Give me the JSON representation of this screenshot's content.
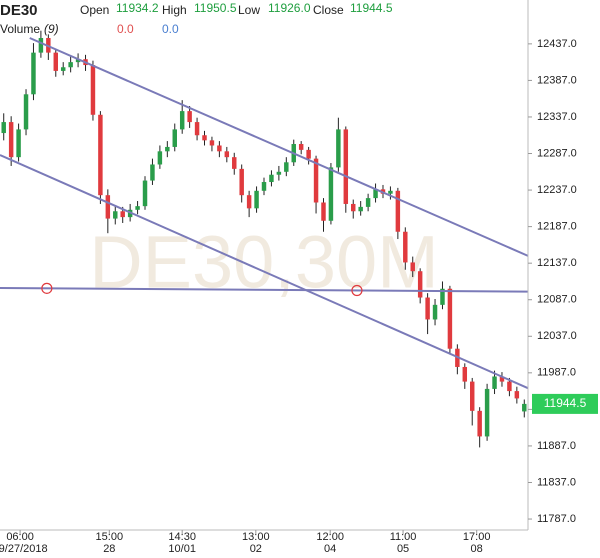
{
  "chart_data": {
    "type": "candlestick",
    "symbol": "DE30",
    "watermark": "DE30,30M",
    "header": {
      "open_label": "Open",
      "open": "11934.2",
      "high_label": "High",
      "high": "11950.5",
      "low_label": "Low",
      "low": "11926.0",
      "close_label": "Close",
      "close": "11944.5",
      "volume_label": "Volume",
      "volume_period": "(9)",
      "volume_value_1": "0.0",
      "volume_value_2": "0.0"
    },
    "up_color": "#2a9d4a",
    "down_color": "#e03a3e",
    "wick_color": "#222",
    "open": [
      12315,
      12330,
      12282,
      12320,
      12368,
      12425,
      12445,
      12425,
      12400,
      12405,
      12412,
      12416,
      12408,
      12340,
      12230,
      12198,
      12208,
      12200,
      12210,
      12215,
      12250,
      12272,
      12290,
      12296,
      12320,
      12345,
      12330,
      12312,
      12305,
      12298,
      12290,
      12282,
      12266,
      12230,
      12212,
      12236,
      12248,
      12258,
      12262,
      12275,
      12300,
      12292,
      12280,
      12220,
      12195,
      12268,
      12320,
      12218,
      12208,
      12214,
      12226,
      12238,
      12232,
      12236,
      12180,
      12138,
      12126,
      12090,
      12060,
      12080,
      12102,
      12020,
      11995,
      11975,
      11935,
      11900,
      11965,
      11982,
      11975,
      11962,
      11934.2
    ],
    "high": [
      12342,
      12338,
      12328,
      12375,
      12438,
      12455,
      12450,
      12430,
      12412,
      12420,
      12424,
      12422,
      12414,
      12345,
      12238,
      12216,
      12214,
      12218,
      12222,
      12256,
      12280,
      12298,
      12304,
      12328,
      12360,
      12352,
      12336,
      12318,
      12310,
      12304,
      12296,
      12288,
      12272,
      12236,
      12242,
      12254,
      12264,
      12270,
      12282,
      12306,
      12304,
      12296,
      12284,
      12226,
      12274,
      12336,
      12324,
      12224,
      12222,
      12232,
      12246,
      12244,
      12242,
      12240,
      12186,
      12146,
      12130,
      12096,
      12088,
      12112,
      12106,
      12026,
      12000,
      11980,
      11940,
      11972,
      11990,
      11988,
      11980,
      11968,
      11950.5
    ],
    "low": [
      12305,
      12270,
      12276,
      12312,
      12360,
      12418,
      12415,
      12392,
      12394,
      12398,
      12405,
      12400,
      12332,
      12218,
      12178,
      12190,
      12192,
      12194,
      12204,
      12210,
      12244,
      12266,
      12282,
      12290,
      12314,
      12322,
      12305,
      12298,
      12290,
      12282,
      12275,
      12258,
      12220,
      12200,
      12206,
      12230,
      12242,
      12250,
      12256,
      12270,
      12286,
      12272,
      12205,
      12180,
      12190,
      12262,
      12206,
      12198,
      12202,
      12208,
      12220,
      12226,
      12224,
      12170,
      12128,
      12118,
      12082,
      12040,
      12052,
      12074,
      12012,
      11985,
      11965,
      11915,
      11885,
      11894,
      11958,
      11968,
      11955,
      11945,
      11926.0
    ],
    "close": [
      12330,
      12282,
      12320,
      12368,
      12425,
      12445,
      12425,
      12400,
      12405,
      12412,
      12416,
      12408,
      12340,
      12230,
      12198,
      12208,
      12200,
      12210,
      12215,
      12250,
      12272,
      12290,
      12296,
      12320,
      12345,
      12330,
      12312,
      12305,
      12298,
      12290,
      12282,
      12266,
      12230,
      12212,
      12236,
      12248,
      12258,
      12262,
      12275,
      12300,
      12292,
      12280,
      12220,
      12195,
      12268,
      12320,
      12218,
      12208,
      12214,
      12226,
      12238,
      12232,
      12236,
      12180,
      12138,
      12126,
      12090,
      12060,
      12080,
      12102,
      12020,
      11995,
      11975,
      11935,
      11900,
      11965,
      11982,
      11975,
      11962,
      11952,
      11944.5
    ],
    "xlim": [
      -0.5,
      70.5
    ],
    "ylim": [
      11772,
      12497
    ],
    "yticks": [
      {
        "value": 12437,
        "label": "12437.0"
      },
      {
        "value": 12387,
        "label": "12387.0"
      },
      {
        "value": 12337,
        "label": "12337.0"
      },
      {
        "value": 12287,
        "label": "12287.0"
      },
      {
        "value": 12237,
        "label": "12237.0"
      },
      {
        "value": 12187,
        "label": "12187.0"
      },
      {
        "value": 12137,
        "label": "12137.0"
      },
      {
        "value": 12087,
        "label": "12087.0"
      },
      {
        "value": 12037,
        "label": "12037.0"
      },
      {
        "value": 11987,
        "label": "11987.0"
      },
      {
        "value": 11937,
        "label": "11937.0"
      },
      {
        "value": 11887,
        "label": "11887.0"
      },
      {
        "value": 11837,
        "label": "11837.0"
      },
      {
        "value": 11787,
        "label": "11787.0"
      }
    ],
    "xticks": [
      {
        "value": 2.2,
        "label": "06:00",
        "sublabel": "09/27/2018"
      },
      {
        "value": 14.2,
        "label": "15:00",
        "sublabel": "28"
      },
      {
        "value": 24,
        "label": "14:30",
        "sublabel": "10/01"
      },
      {
        "value": 33.9,
        "label": "13:00",
        "sublabel": "02"
      },
      {
        "value": 43.9,
        "label": "12:00",
        "sublabel": "04"
      },
      {
        "value": 53.7,
        "label": "11:00",
        "sublabel": "05"
      },
      {
        "value": 63.6,
        "label": "17:00",
        "sublabel": "08"
      }
    ],
    "line_color": "#7a7ab8",
    "marker_color": "#e03a3e",
    "price_tag_color": "#2ecc5a",
    "trendlines": [
      {
        "x": [
          3.5,
          70.5
        ],
        "y": [
          12445,
          12147
        ]
      },
      {
        "x": [
          -0.5,
          70.5
        ],
        "y": [
          12285,
          11966
        ]
      },
      {
        "x": [
          -0.5,
          70.5
        ],
        "y": [
          12103,
          12098
        ],
        "markers": [
          5.8,
          47.5
        ]
      }
    ]
  }
}
